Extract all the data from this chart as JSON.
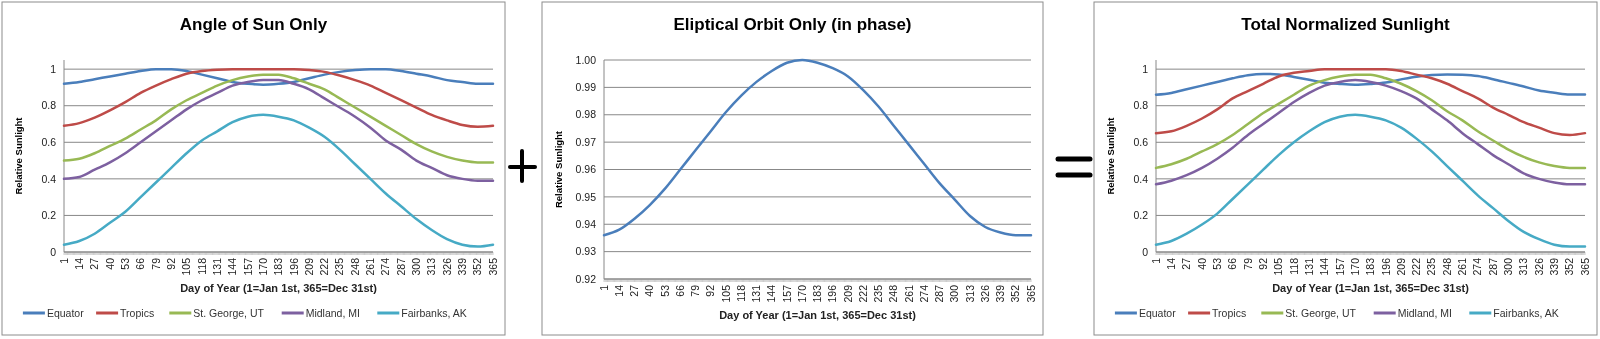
{
  "chart_data": [
    {
      "type": "line",
      "title": "Angle of Sun Only",
      "xlabel": "Day of Year (1=Jan 1st, 365=Dec 31st)",
      "ylabel": "Relative Sunlight",
      "x": [
        1,
        14,
        27,
        40,
        53,
        66,
        79,
        92,
        105,
        118,
        131,
        144,
        157,
        170,
        183,
        196,
        209,
        222,
        235,
        248,
        261,
        274,
        287,
        300,
        313,
        326,
        339,
        352,
        365
      ],
      "xlim": [
        1,
        365
      ],
      "xticks": [
        1,
        14,
        27,
        40,
        53,
        66,
        79,
        92,
        105,
        118,
        131,
        144,
        157,
        170,
        183,
        196,
        209,
        222,
        235,
        248,
        261,
        274,
        287,
        300,
        313,
        326,
        339,
        352,
        365
      ],
      "ylim": [
        0,
        1.05
      ],
      "yticks": [
        0,
        0.2,
        0.4,
        0.6,
        0.8,
        1
      ],
      "grid": "y",
      "legend": "bottom",
      "series": [
        {
          "name": "Equator",
          "color": "#4a7ebb",
          "values": [
            0.92,
            0.93,
            0.945,
            0.96,
            0.975,
            0.99,
            1.0,
            1.0,
            0.99,
            0.97,
            0.95,
            0.93,
            0.92,
            0.915,
            0.92,
            0.93,
            0.95,
            0.97,
            0.985,
            0.995,
            1.0,
            1.0,
            0.99,
            0.975,
            0.96,
            0.94,
            0.93,
            0.92,
            0.92
          ]
        },
        {
          "name": "Tropics",
          "color": "#be4b48",
          "values": [
            0.69,
            0.705,
            0.735,
            0.775,
            0.82,
            0.87,
            0.91,
            0.945,
            0.975,
            0.99,
            0.997,
            1.0,
            1.0,
            1.0,
            1.0,
            1.0,
            0.995,
            0.985,
            0.965,
            0.94,
            0.91,
            0.87,
            0.83,
            0.79,
            0.75,
            0.72,
            0.695,
            0.685,
            0.69
          ]
        },
        {
          "name": "St. George, UT",
          "color": "#98b954",
          "values": [
            0.5,
            0.51,
            0.54,
            0.58,
            0.62,
            0.67,
            0.72,
            0.78,
            0.83,
            0.87,
            0.91,
            0.94,
            0.96,
            0.97,
            0.97,
            0.95,
            0.92,
            0.89,
            0.84,
            0.79,
            0.74,
            0.69,
            0.64,
            0.59,
            0.55,
            0.52,
            0.5,
            0.49,
            0.49
          ]
        },
        {
          "name": "Midland, MI",
          "color": "#7d60a0",
          "values": [
            0.4,
            0.41,
            0.45,
            0.49,
            0.54,
            0.6,
            0.66,
            0.72,
            0.78,
            0.83,
            0.87,
            0.91,
            0.93,
            0.94,
            0.94,
            0.92,
            0.89,
            0.84,
            0.79,
            0.74,
            0.68,
            0.61,
            0.56,
            0.5,
            0.46,
            0.42,
            0.4,
            0.39,
            0.39
          ]
        },
        {
          "name": "Fairbanks, AK",
          "color": "#46aac5",
          "values": [
            0.04,
            0.06,
            0.1,
            0.16,
            0.22,
            0.3,
            0.38,
            0.46,
            0.54,
            0.61,
            0.66,
            0.71,
            0.74,
            0.75,
            0.74,
            0.72,
            0.68,
            0.63,
            0.56,
            0.48,
            0.4,
            0.32,
            0.25,
            0.18,
            0.12,
            0.07,
            0.04,
            0.03,
            0.04
          ]
        }
      ]
    },
    {
      "type": "line",
      "title": "Eliptical Orbit Only (in phase)",
      "xlabel": "Day of Year (1=Jan 1st, 365=Dec 31st)",
      "ylabel": "Relative Sunlight",
      "x": [
        1,
        14,
        27,
        40,
        53,
        66,
        79,
        92,
        105,
        118,
        131,
        144,
        157,
        170,
        183,
        196,
        209,
        222,
        235,
        248,
        261,
        274,
        287,
        300,
        313,
        326,
        339,
        352,
        365
      ],
      "xlim": [
        1,
        365
      ],
      "xticks": [
        1,
        14,
        27,
        40,
        53,
        66,
        79,
        92,
        105,
        118,
        131,
        144,
        157,
        170,
        183,
        196,
        209,
        222,
        235,
        248,
        261,
        274,
        287,
        300,
        313,
        326,
        339,
        352,
        365
      ],
      "ylim": [
        0.92,
        1.0
      ],
      "yticks": [
        0.92,
        0.93,
        0.94,
        0.95,
        0.96,
        0.97,
        0.98,
        0.99,
        {
          "value": 1.0,
          "label": "1.00"
        }
      ],
      "grid": "y",
      "series": [
        {
          "color": "#4a7ebb",
          "values": [
            0.936,
            0.938,
            0.942,
            0.947,
            0.953,
            0.96,
            0.967,
            0.974,
            0.981,
            0.987,
            0.992,
            0.996,
            0.999,
            1.0,
            0.999,
            0.997,
            0.994,
            0.989,
            0.983,
            0.976,
            0.969,
            0.962,
            0.955,
            0.949,
            0.943,
            0.939,
            0.937,
            0.936,
            0.936
          ]
        }
      ]
    },
    {
      "type": "line",
      "title": "Total Normalized Sunlight",
      "xlabel": "Day of Year (1=Jan 1st, 365=Dec 31st)",
      "ylabel": "Relative Sunlight",
      "x": [
        1,
        14,
        27,
        40,
        53,
        66,
        79,
        92,
        105,
        118,
        131,
        144,
        157,
        170,
        183,
        196,
        209,
        222,
        235,
        248,
        261,
        274,
        287,
        300,
        313,
        326,
        339,
        352,
        365
      ],
      "xlim": [
        1,
        365
      ],
      "xticks": [
        1,
        14,
        27,
        40,
        53,
        66,
        79,
        92,
        105,
        118,
        131,
        144,
        157,
        170,
        183,
        196,
        209,
        222,
        235,
        248,
        261,
        274,
        287,
        300,
        313,
        326,
        339,
        352,
        365
      ],
      "ylim": [
        0,
        1.05
      ],
      "yticks": [
        0,
        0.2,
        0.4,
        0.6,
        0.8,
        1
      ],
      "grid": "y",
      "legend": "bottom",
      "series": [
        {
          "name": "Equator",
          "color": "#4a7ebb",
          "values": [
            0.86,
            0.87,
            0.89,
            0.91,
            0.93,
            0.95,
            0.967,
            0.974,
            0.971,
            0.957,
            0.942,
            0.926,
            0.919,
            0.915,
            0.919,
            0.927,
            0.944,
            0.959,
            0.968,
            0.971,
            0.969,
            0.962,
            0.945,
            0.925,
            0.905,
            0.883,
            0.871,
            0.861,
            0.861
          ]
        },
        {
          "name": "Tropics",
          "color": "#be4b48",
          "values": [
            0.65,
            0.66,
            0.69,
            0.73,
            0.78,
            0.84,
            0.88,
            0.92,
            0.96,
            0.98,
            0.99,
            1.0,
            1.0,
            1.0,
            1.0,
            1.0,
            0.99,
            0.97,
            0.95,
            0.92,
            0.88,
            0.84,
            0.79,
            0.75,
            0.71,
            0.68,
            0.65,
            0.64,
            0.65
          ]
        },
        {
          "name": "St. George, UT",
          "color": "#98b954",
          "values": [
            0.46,
            0.48,
            0.51,
            0.55,
            0.59,
            0.64,
            0.7,
            0.76,
            0.81,
            0.86,
            0.91,
            0.94,
            0.96,
            0.97,
            0.97,
            0.95,
            0.92,
            0.88,
            0.83,
            0.77,
            0.72,
            0.66,
            0.61,
            0.56,
            0.52,
            0.49,
            0.47,
            0.46,
            0.46
          ]
        },
        {
          "name": "Midland, MI",
          "color": "#7d60a0",
          "values": [
            0.37,
            0.39,
            0.42,
            0.46,
            0.51,
            0.57,
            0.64,
            0.7,
            0.76,
            0.82,
            0.87,
            0.91,
            0.93,
            0.94,
            0.93,
            0.91,
            0.88,
            0.84,
            0.78,
            0.72,
            0.65,
            0.59,
            0.53,
            0.48,
            0.43,
            0.4,
            0.38,
            0.37,
            0.37
          ]
        },
        {
          "name": "Fairbanks, AK",
          "color": "#46aac5",
          "values": [
            0.04,
            0.06,
            0.1,
            0.15,
            0.21,
            0.29,
            0.37,
            0.45,
            0.53,
            0.6,
            0.66,
            0.71,
            0.74,
            0.75,
            0.74,
            0.72,
            0.68,
            0.62,
            0.55,
            0.47,
            0.39,
            0.31,
            0.24,
            0.17,
            0.11,
            0.07,
            0.04,
            0.03,
            0.03
          ]
        }
      ]
    }
  ]
}
